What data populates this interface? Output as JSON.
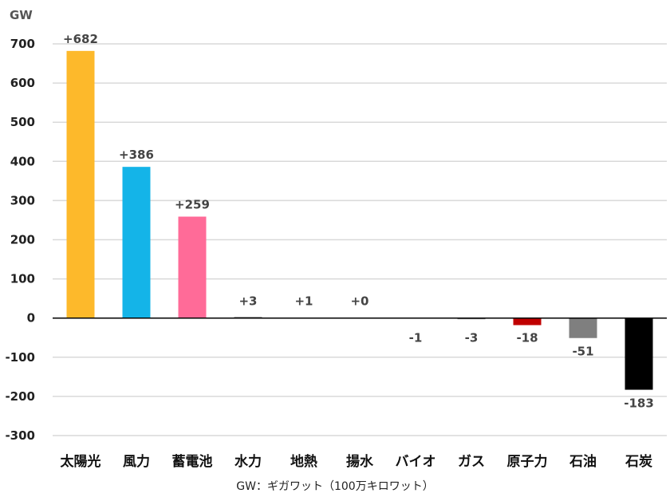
{
  "chart_data": {
    "type": "bar",
    "ylabel": "GW",
    "note": "GW：ギガワット（100万キロワット）",
    "ylim": [
      -300,
      700
    ],
    "yticks": [
      700,
      600,
      500,
      400,
      300,
      200,
      100,
      0,
      -100,
      -200,
      -300
    ],
    "grid": true,
    "categories": [
      "太陽光",
      "風力",
      "蓄電池",
      "水力",
      "地熱",
      "揚水",
      "バイオ",
      "ガス",
      "原子力",
      "石油",
      "石炭"
    ],
    "values": [
      682,
      386,
      259,
      3,
      1,
      0,
      -1,
      -3,
      -18,
      -51,
      -183
    ],
    "data_labels": [
      "+682",
      "+386",
      "+259",
      "+3",
      "+1",
      "+0",
      "-1",
      "-3",
      "-18",
      "-51",
      "-183"
    ],
    "colors": [
      "#FDB92B",
      "#14B4E8",
      "#FF6B98",
      "#888888",
      "#888888",
      "#888888",
      "#888888",
      "#888888",
      "#C00000",
      "#7F7F7F",
      "#000000"
    ]
  }
}
